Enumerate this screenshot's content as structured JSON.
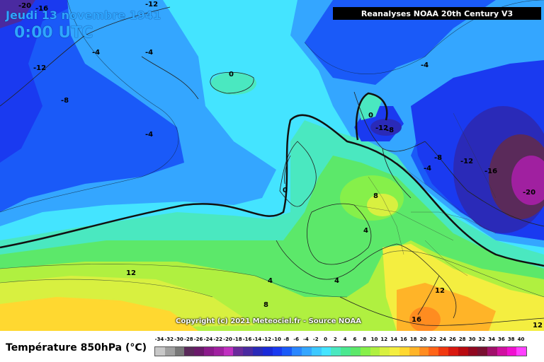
{
  "header": {
    "date": "Jeudi 13 novembre 1941",
    "time": "0:00 UTC",
    "source_badge": "Reanalyses NOAA 20th Century V3"
  },
  "map": {
    "copyright": "Copyright (c) 2021 Meteociel.fr - Source NOAA",
    "isotherm_labels": [
      {
        "id": "l1",
        "text": "-20"
      },
      {
        "id": "l2",
        "text": "-16"
      },
      {
        "id": "l3",
        "text": "-12"
      },
      {
        "id": "l4",
        "text": "-4"
      },
      {
        "id": "l5",
        "text": "-4"
      },
      {
        "id": "l6",
        "text": "-12"
      },
      {
        "id": "l7",
        "text": "-8"
      },
      {
        "id": "l8",
        "text": "0"
      },
      {
        "id": "l9",
        "text": "-4"
      },
      {
        "id": "l10",
        "text": "0"
      },
      {
        "id": "l11",
        "text": "-8"
      },
      {
        "id": "l12",
        "text": "-12"
      },
      {
        "id": "l13",
        "text": "-4"
      },
      {
        "id": "l14",
        "text": "-8"
      },
      {
        "id": "l15",
        "text": "-4"
      },
      {
        "id": "l16",
        "text": "-12"
      },
      {
        "id": "l17",
        "text": "-16"
      },
      {
        "id": "l18",
        "text": "-20"
      },
      {
        "id": "l19",
        "text": "0"
      },
      {
        "id": "l20",
        "text": "8"
      },
      {
        "id": "l21",
        "text": "4"
      },
      {
        "id": "l22",
        "text": "12"
      },
      {
        "id": "l23",
        "text": "4"
      },
      {
        "id": "l24",
        "text": "8"
      },
      {
        "id": "l25",
        "text": "4"
      },
      {
        "id": "l26",
        "text": "12"
      },
      {
        "id": "l27",
        "text": "16"
      },
      {
        "id": "l28",
        "text": "12"
      }
    ]
  },
  "legend": {
    "title": "Température 850hPa (°C)",
    "labels": [
      "-34",
      "-32",
      "-30",
      "-28",
      "-26",
      "-24",
      "-22",
      "-20",
      "-18",
      "-16",
      "-14",
      "-12",
      "-10",
      "-8",
      "-6",
      "-4",
      "-2",
      "0",
      "2",
      "4",
      "6",
      "8",
      "10",
      "12",
      "14",
      "16",
      "18",
      "20",
      "22",
      "24",
      "26",
      "28",
      "30",
      "32",
      "34",
      "36",
      "38",
      "40"
    ],
    "colors": [
      "#c8c8c8",
      "#a0a0a0",
      "#787878",
      "#5a2a5a",
      "#6a1a6a",
      "#8a1a8a",
      "#a020a0",
      "#c030c0",
      "#6a2a9a",
      "#4a2aa0",
      "#2a2ab8",
      "#1a2ad8",
      "#1a3af0",
      "#1a5af8",
      "#2a86ff",
      "#34a6ff",
      "#3cc8ff",
      "#44e4ff",
      "#4ae8c0",
      "#4ae890",
      "#5ce86a",
      "#86f04a",
      "#b0f040",
      "#d8f040",
      "#f4ee40",
      "#ffd830",
      "#ffb428",
      "#ff8c20",
      "#ff6418",
      "#f03810",
      "#d81810",
      "#b80a10",
      "#900820",
      "#781030",
      "#a0106a",
      "#d010a0",
      "#f010d0",
      "#ff40ff"
    ]
  }
}
